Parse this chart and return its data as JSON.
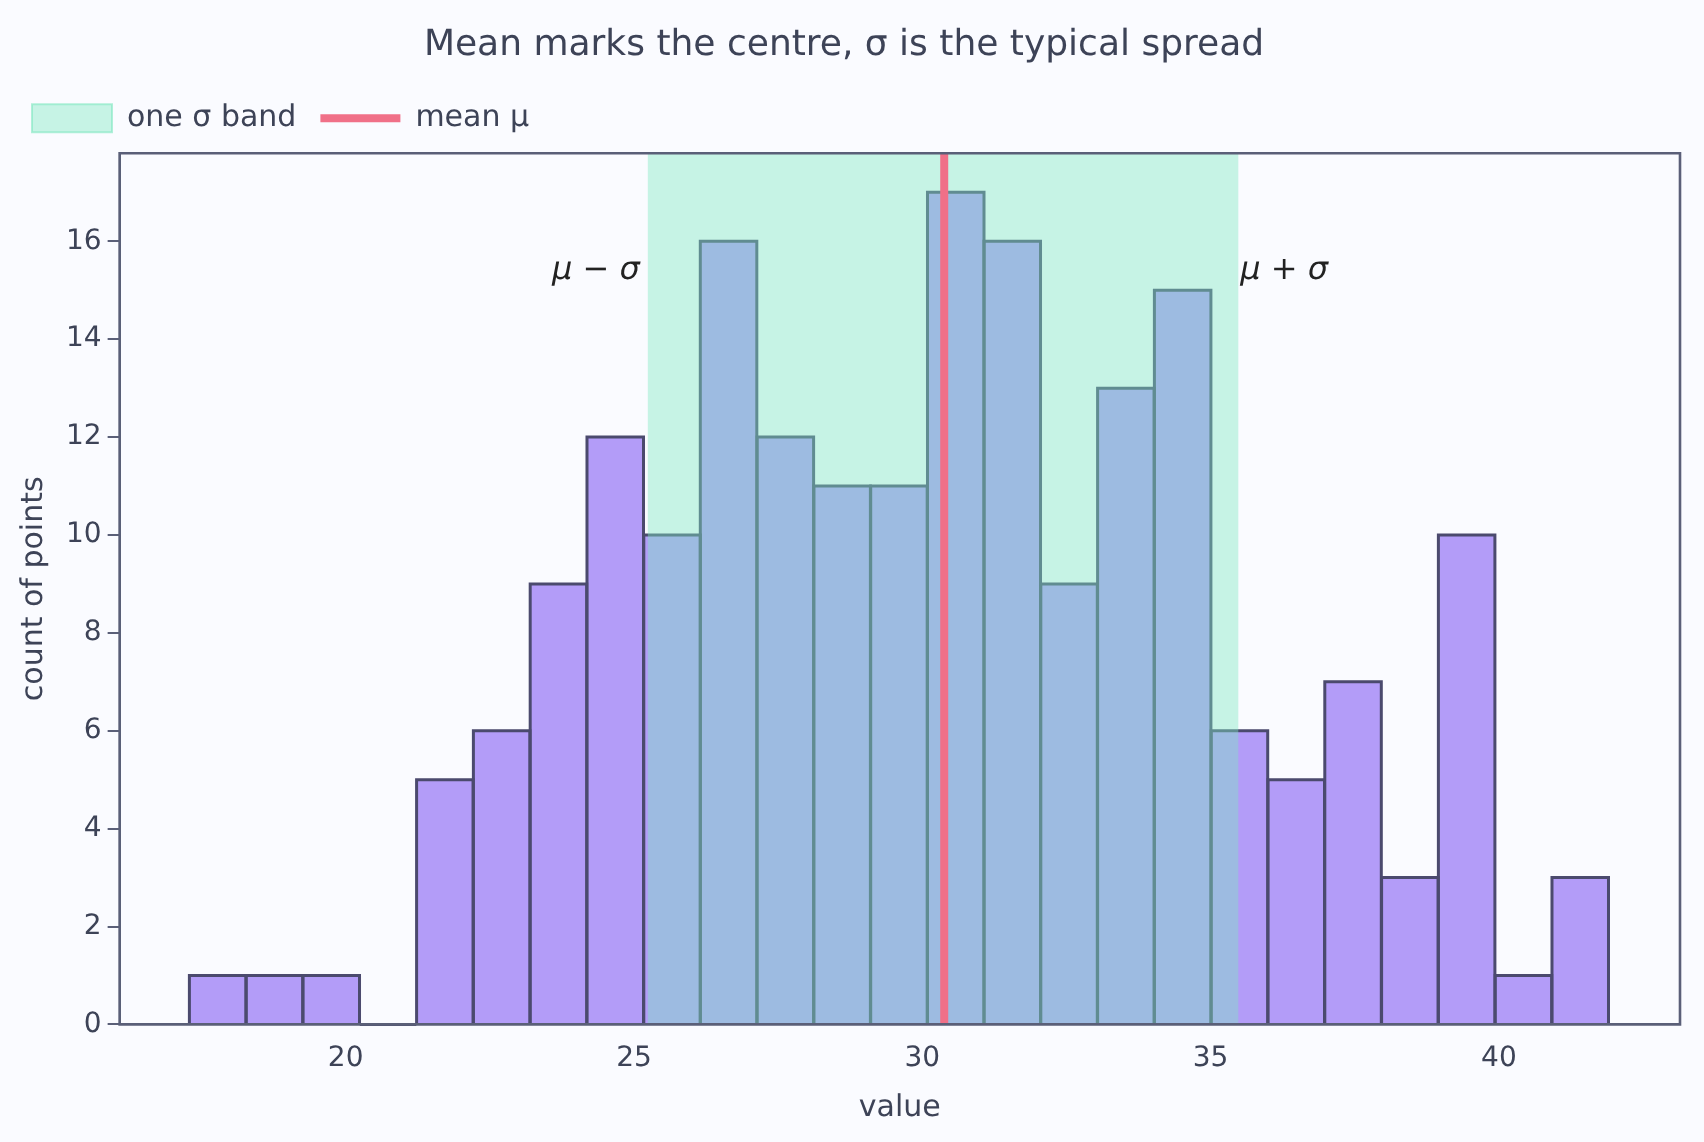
{
  "chart_data": {
    "type": "histogram",
    "title": "Mean marks the centre, σ is the typical spread",
    "xlabel": "value",
    "ylabel": "count of points",
    "bins": [
      17.29,
      18.27,
      19.26,
      20.24,
      21.23,
      22.21,
      23.2,
      24.18,
      25.17,
      26.15,
      27.13,
      28.12,
      29.1,
      30.09,
      31.07,
      32.05,
      33.04,
      34.02,
      35.01,
      35.99,
      36.98,
      37.96,
      38.95,
      39.93,
      40.92,
      41.9
    ],
    "values": [
      1,
      1,
      1,
      0,
      5,
      6,
      9,
      12,
      10,
      16,
      12,
      11,
      11,
      17,
      16,
      9,
      13,
      15,
      6,
      5,
      7,
      3,
      10,
      1,
      3
    ],
    "color": "#b39cf8",
    "xlim": [
      16.08,
      43.14
    ],
    "xticks": [
      20,
      25,
      30,
      35,
      40
    ],
    "ylim": [
      0,
      17.8
    ],
    "yticks": [
      0,
      2,
      4,
      6,
      8,
      10,
      12,
      14,
      16
    ],
    "bands": [
      {
        "axis": "x",
        "from": 25.24,
        "to": 35.48,
        "label": "one σ band",
        "color": "#7ee8c0"
      }
    ],
    "ref_lines": [
      {
        "axis": "x",
        "value": 30.38,
        "label": "mean μ",
        "color": "#f07088"
      }
    ],
    "annotations": [
      {
        "text": "μ − σ",
        "x": 25.24,
        "y": 15.4
      },
      {
        "text": "μ + σ",
        "x": 35.48,
        "y": 15.4
      }
    ],
    "grid": false,
    "legend": "top left"
  }
}
